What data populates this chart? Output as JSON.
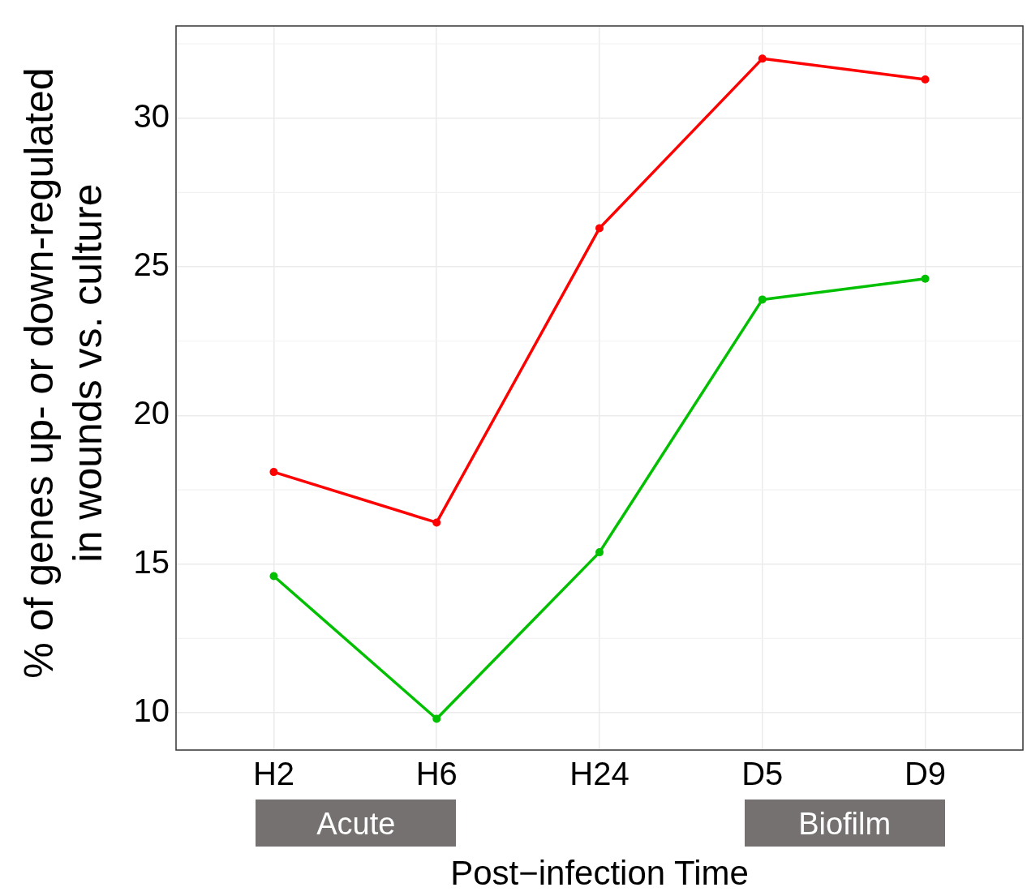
{
  "chart_data": {
    "type": "line",
    "ylabel": "% of genes up- or down-regulated in wounds vs. culture",
    "xlabel": "Post−infection Time",
    "categories": [
      "H2",
      "H6",
      "H24",
      "D5",
      "D9"
    ],
    "series": [
      {
        "color": "#ff0000",
        "values": [
          18.1,
          16.4,
          26.3,
          32.0,
          31.3
        ]
      },
      {
        "color": "#00c000",
        "values": [
          14.6,
          9.8,
          15.4,
          23.9,
          24.6
        ]
      }
    ],
    "ylim": [
      8.75,
      33.1
    ],
    "yticks": [
      10,
      15,
      20,
      25,
      30
    ],
    "grid": true,
    "marker": "circle",
    "line_style": "solid",
    "legend": false,
    "annotations": [
      "Acute",
      "Biofilm"
    ]
  }
}
